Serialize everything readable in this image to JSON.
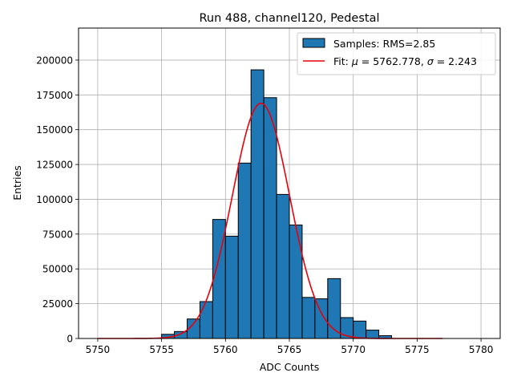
{
  "chart_data": {
    "type": "bar",
    "title": "Run 488, channel120, Pedestal",
    "xlabel": "ADC Counts",
    "ylabel": "Entries",
    "xlim": [
      5748.5,
      5781.5
    ],
    "ylim": [
      0,
      223000
    ],
    "xticks": [
      5750,
      5755,
      5760,
      5765,
      5770,
      5775,
      5780
    ],
    "yticks": [
      0,
      25000,
      50000,
      75000,
      100000,
      125000,
      150000,
      175000,
      200000
    ],
    "grid": true,
    "legend_placement": "top-right",
    "histogram": {
      "name": "Samples: RMS=2.85",
      "color": "#1f77b4",
      "bin_width": 1,
      "bin_starts": [
        5755,
        5756,
        5757,
        5758,
        5759,
        5760,
        5761,
        5762,
        5763,
        5764,
        5765,
        5766,
        5767,
        5768,
        5769,
        5770,
        5771,
        5772
      ],
      "values": [
        3000,
        5000,
        14000,
        26500,
        85500,
        73500,
        126000,
        193000,
        173000,
        103500,
        81500,
        29500,
        28500,
        43000,
        15000,
        12500,
        6000,
        2000
      ]
    },
    "fit": {
      "name_prefix": "Fit: ",
      "name_mu": "μ",
      "name_eq1": " = 5762.778, ",
      "name_sigma": "σ",
      "name_eq2": " = 2.243",
      "color": "#e8000b",
      "mu": 5762.778,
      "sigma": 2.243,
      "amplitude": 169000,
      "x_range": [
        5750,
        5777
      ]
    }
  }
}
